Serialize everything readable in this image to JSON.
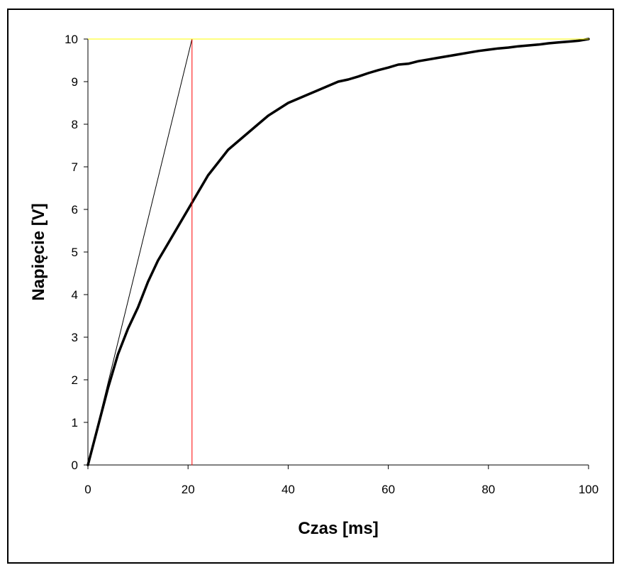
{
  "chart_data": {
    "type": "line",
    "xlabel": "Czas [ms]",
    "ylabel": "Napięcie [V]",
    "xlim": [
      0,
      100
    ],
    "ylim": [
      0,
      10
    ],
    "xticks": [
      0,
      20,
      40,
      60,
      80,
      100
    ],
    "yticks": [
      0,
      1,
      2,
      3,
      4,
      5,
      6,
      7,
      8,
      9,
      10
    ],
    "grid": false,
    "legend": "none",
    "series": [
      {
        "color": "#000000",
        "style": "thick",
        "x": [
          0,
          2,
          4,
          6,
          8,
          10,
          12,
          14,
          16,
          18,
          20,
          22,
          24,
          26,
          28,
          30,
          32,
          34,
          36,
          38,
          40,
          42,
          44,
          46,
          48,
          50,
          52,
          54,
          56,
          58,
          60,
          62,
          64,
          66,
          68,
          70,
          72,
          74,
          76,
          78,
          80,
          82,
          84,
          86,
          88,
          90,
          92,
          94,
          96,
          98,
          100
        ],
        "y": [
          0,
          0.9,
          1.8,
          2.6,
          3.2,
          3.7,
          4.3,
          4.8,
          5.2,
          5.6,
          6.0,
          6.4,
          6.8,
          7.1,
          7.4,
          7.6,
          7.8,
          8.0,
          8.2,
          8.35,
          8.5,
          8.6,
          8.7,
          8.8,
          8.9,
          9.0,
          9.05,
          9.12,
          9.2,
          9.27,
          9.33,
          9.4,
          9.42,
          9.48,
          9.52,
          9.56,
          9.6,
          9.64,
          9.68,
          9.72,
          9.75,
          9.78,
          9.8,
          9.83,
          9.85,
          9.87,
          9.9,
          9.92,
          9.94,
          9.96,
          10.0
        ]
      },
      {
        "color": "#000000",
        "style": "thin",
        "x": [
          0,
          20.8
        ],
        "y": [
          0,
          10
        ]
      },
      {
        "color": "#ff0000",
        "style": "vertical",
        "x": [
          20.8,
          20.8
        ],
        "y": [
          0,
          10
        ]
      },
      {
        "color": "#ffff00",
        "style": "horizontal",
        "x": [
          0,
          100
        ],
        "y": [
          10,
          10
        ]
      }
    ]
  }
}
